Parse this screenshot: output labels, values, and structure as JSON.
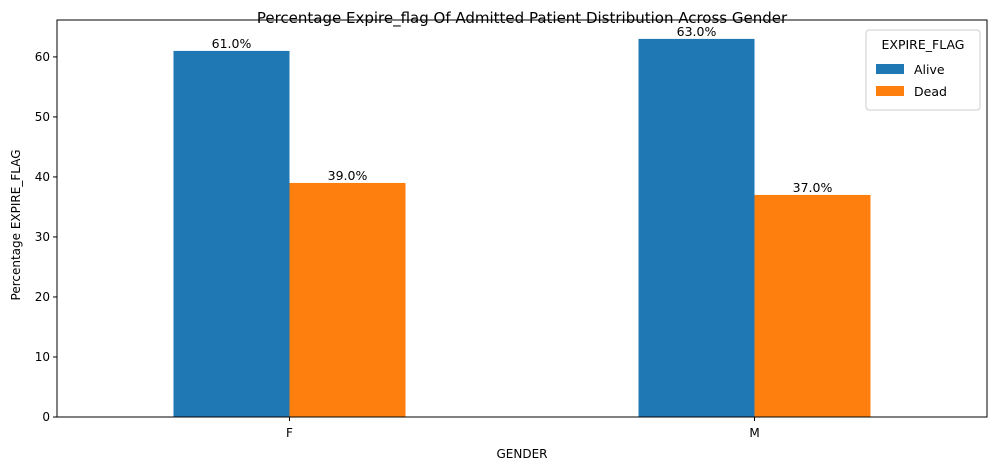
{
  "chart_data": {
    "type": "bar",
    "title": "Percentage Expire_flag Of Admitted Patient Distribution Across Gender",
    "xlabel": "GENDER",
    "ylabel": "Percentage EXPIRE_FLAG",
    "categories": [
      "F",
      "M"
    ],
    "series": [
      {
        "name": "Alive",
        "values": [
          61.0,
          63.0
        ],
        "labels": [
          "61.0%",
          "63.0%"
        ],
        "color": "#1f77b4"
      },
      {
        "name": "Dead",
        "values": [
          39.0,
          37.0
        ],
        "labels": [
          "39.0%",
          "37.0%"
        ],
        "color": "#ff7f0e"
      }
    ],
    "ylim": [
      0,
      66.15
    ],
    "yticks": [
      0,
      10,
      20,
      30,
      40,
      50,
      60
    ],
    "legend": {
      "title": "EXPIRE_FLAG",
      "position": "top-right"
    },
    "grid": false
  }
}
